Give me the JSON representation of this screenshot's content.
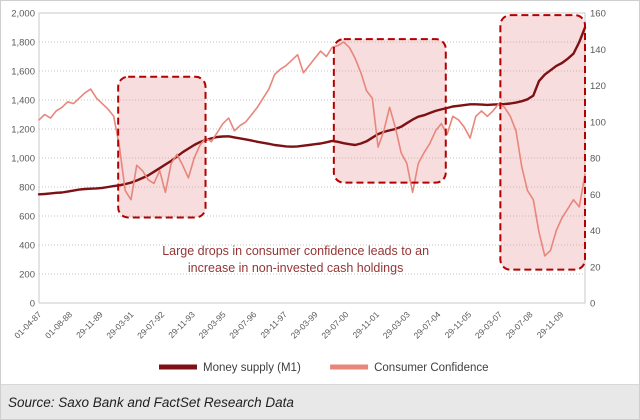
{
  "footer": {
    "source": "Source: Saxo Bank and FactSet Research Data"
  },
  "chart_data": {
    "type": "line",
    "title": "",
    "xlabel": "",
    "ylabel_left": "",
    "ylabel_right": "",
    "grid": true,
    "grid_color": "#c6c6c6",
    "legend_position": "bottom",
    "left_axis": {
      "min": 0,
      "max": 2000,
      "step": 200
    },
    "right_axis": {
      "min": 0,
      "max": 160,
      "step": 20
    },
    "x_labels": [
      "01-04-87",
      "01-08-88",
      "29-11-89",
      "29-03-91",
      "29-07-92",
      "29-11-93",
      "29-03-95",
      "29-07-96",
      "29-11-97",
      "29-03-99",
      "29-07-00",
      "29-11-01",
      "29-03-03",
      "29-07-04",
      "29-11-05",
      "29-03-07",
      "29-07-08",
      "29-11-09"
    ],
    "series": [
      {
        "name": "Money supply (M1)",
        "axis": "left",
        "color": "#7d1114",
        "width": 2.4,
        "values": [
          750,
          752,
          756,
          760,
          762,
          768,
          775,
          782,
          786,
          788,
          790,
          794,
          800,
          806,
          812,
          820,
          830,
          845,
          862,
          880,
          905,
          930,
          955,
          980,
          1010,
          1040,
          1065,
          1090,
          1110,
          1125,
          1135,
          1145,
          1148,
          1150,
          1142,
          1135,
          1128,
          1120,
          1112,
          1105,
          1098,
          1090,
          1085,
          1080,
          1078,
          1080,
          1085,
          1090,
          1095,
          1100,
          1108,
          1118,
          1112,
          1102,
          1095,
          1090,
          1100,
          1115,
          1140,
          1165,
          1180,
          1190,
          1200,
          1215,
          1240,
          1265,
          1285,
          1295,
          1310,
          1325,
          1335,
          1345,
          1355,
          1360,
          1365,
          1370,
          1370,
          1368,
          1366,
          1368,
          1370,
          1372,
          1376,
          1382,
          1392,
          1405,
          1430,
          1530,
          1575,
          1605,
          1635,
          1655,
          1685,
          1720,
          1800,
          1900
        ]
      },
      {
        "name": "Consumer Confidence",
        "axis": "right",
        "color": "#e8867c",
        "width": 1.6,
        "values": [
          101,
          104,
          102,
          106,
          108,
          111,
          110,
          113,
          116,
          118,
          113,
          110,
          107,
          103,
          86,
          62,
          57,
          76,
          73,
          68,
          66,
          73,
          61,
          77,
          82,
          76,
          69,
          80,
          87,
          91,
          89,
          94,
          99,
          102,
          95,
          98,
          100,
          104,
          108,
          113,
          118,
          126,
          129,
          131,
          134,
          137,
          127,
          131,
          135,
          139,
          136,
          141,
          142,
          144,
          141,
          135,
          127,
          117,
          113,
          86,
          95,
          108,
          97,
          83,
          77,
          61,
          77,
          83,
          88,
          95,
          99,
          93,
          103,
          101,
          97,
          91,
          103,
          106,
          103,
          106,
          110,
          108,
          103,
          95,
          75,
          62,
          57,
          39,
          26,
          29,
          40,
          47,
          52,
          57,
          53,
          71
        ]
      }
    ],
    "highlight_regions": [
      {
        "x0": 0.145,
        "x1": 0.305,
        "y_low": 590,
        "y_high": 1560
      },
      {
        "x0": 0.54,
        "x1": 0.745,
        "y_low": 830,
        "y_high": 1820
      },
      {
        "x0": 0.845,
        "x1": 1.0,
        "y_low": 230,
        "y_high": 1985
      }
    ],
    "highlight_style": {
      "fill": "rgba(228,132,132,0.28)",
      "stroke": "#b30000"
    },
    "annotation": {
      "lines": [
        "Large drops in consumer confidence leads to an",
        "increase in non-invested cash holdings"
      ],
      "x": 0.47,
      "y": 330,
      "color": "#943634"
    }
  }
}
